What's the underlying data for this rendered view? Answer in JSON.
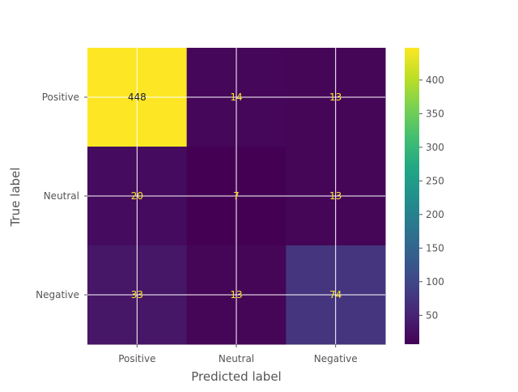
{
  "chart_data": {
    "type": "heatmap",
    "title": "",
    "xlabel": "Predicted label",
    "ylabel": "True label",
    "x_categories": [
      "Positive",
      "Neutral",
      "Negative"
    ],
    "y_categories": [
      "Positive",
      "Neutral",
      "Negative"
    ],
    "values": [
      [
        448,
        14,
        13
      ],
      [
        20,
        7,
        13
      ],
      [
        33,
        13,
        74
      ]
    ],
    "colorbar": {
      "colormap": "viridis",
      "vmin": 7,
      "vmax": 448,
      "ticks": [
        50,
        100,
        150,
        200,
        250,
        300,
        350,
        400
      ]
    },
    "grid": true,
    "value_label_colors": {
      "dark_text": "#202020",
      "light_text": "#fde725"
    }
  }
}
